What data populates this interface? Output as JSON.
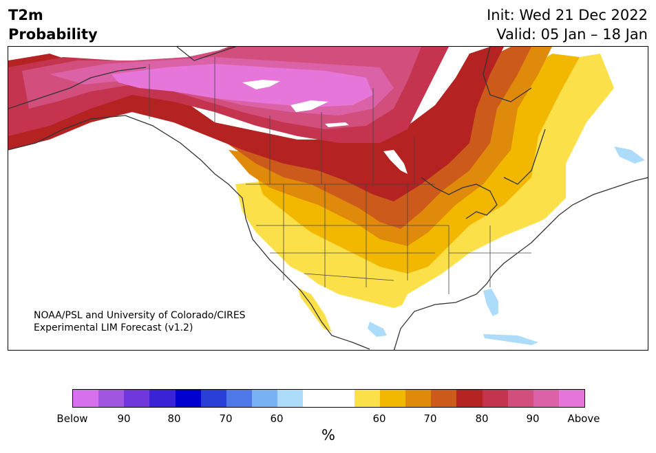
{
  "header": {
    "variable": "T2m",
    "subtitle": "Probability",
    "init": "Init: Wed 21 Dec 2022",
    "valid": "Valid: 05 Jan – 18 Jan"
  },
  "credit": {
    "line1": "NOAA/PSL and University of Colorado/CIRES",
    "line2": "Experimental LIM Forecast (v1.2)"
  },
  "colorbar": {
    "unit": "%",
    "colors": [
      "#d670ec",
      "#a056e0",
      "#7038dc",
      "#3a22d6",
      "#0000d0",
      "#2a3ed8",
      "#4f78e8",
      "#78b2f4",
      "#acdcfa",
      "#ffffff",
      "#ffffff",
      "#fce04a",
      "#f2b800",
      "#e08a0c",
      "#cc5a1a",
      "#b42222",
      "#c4344e",
      "#d24e7c",
      "#dc62a8",
      "#e676da"
    ],
    "labels": [
      "Below",
      "90",
      "80",
      "70",
      "60",
      "60",
      "70",
      "80",
      "90",
      "Above"
    ]
  },
  "map": {
    "region": "North America",
    "colors": {
      "above": "#e676da",
      "p90": "#dc62a8",
      "p85": "#d24e7c",
      "p80": "#c4344e",
      "p75": "#b42222",
      "p70": "#cc5a1a",
      "p65": "#e08a0c",
      "p60": "#f2b800",
      "p55": "#fce04a",
      "neutral": "#ffffff",
      "below55": "#acdcfa",
      "coastline": "#333333"
    }
  }
}
